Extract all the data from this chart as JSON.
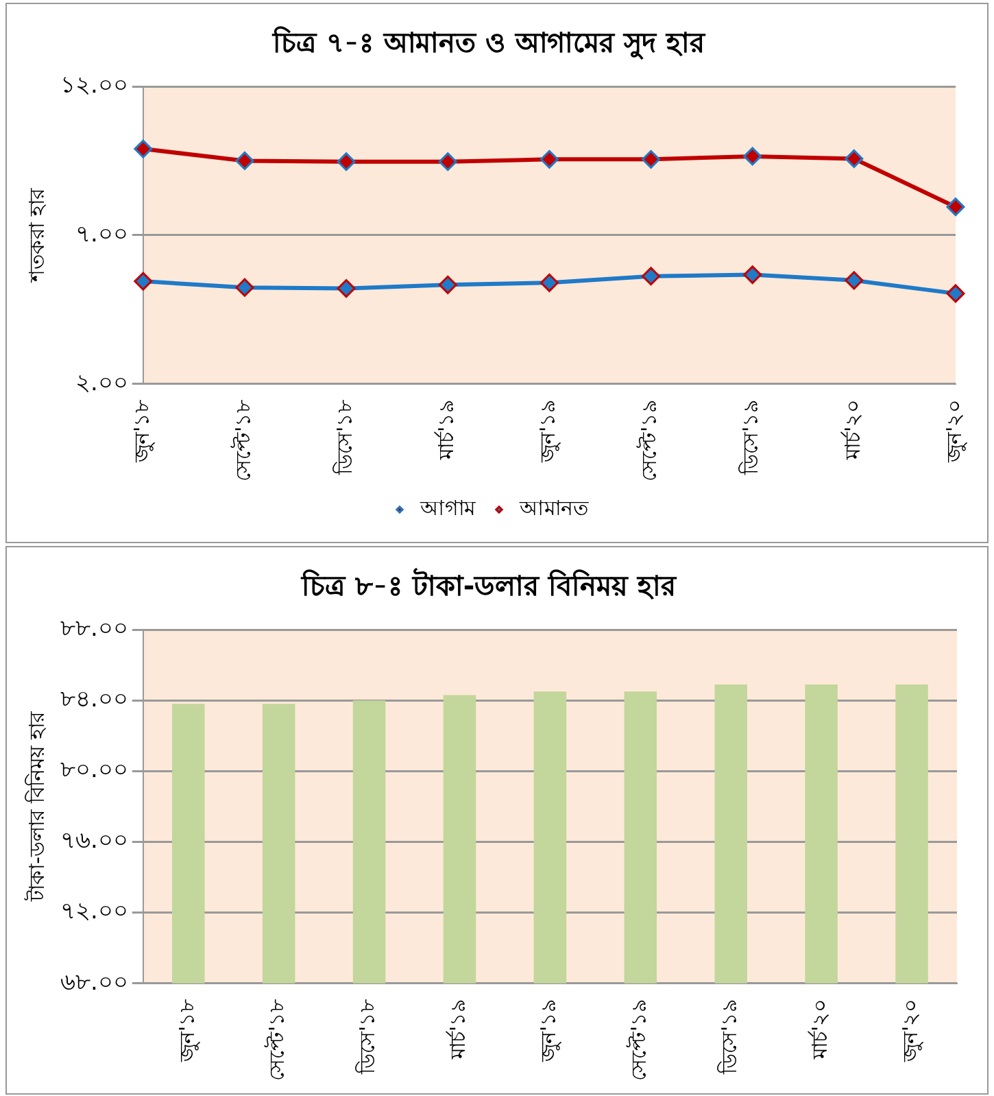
{
  "chart_data": [
    {
      "type": "line",
      "title": "চিত্র ৭-ঃ আমানত ও আগামের সুদ হার",
      "ylabel": "শতকরা হার",
      "categories": [
        "জুন'১৮",
        "সেপ্টে'১৮",
        "ডিসে'১৮",
        "মার্চ'১৯",
        "জুন'১৯",
        "সেপ্টে'১৯",
        "ডিসে'১৯",
        "মার্চ'২০",
        "জুন'২০"
      ],
      "series": [
        {
          "name": "আগাম",
          "color": "#c00000",
          "values": [
            9.9,
            9.5,
            9.47,
            9.47,
            9.55,
            9.55,
            9.65,
            9.57,
            7.95
          ]
        },
        {
          "name": "আমানত",
          "color": "#1f7ac8",
          "values": [
            5.45,
            5.24,
            5.21,
            5.33,
            5.4,
            5.62,
            5.67,
            5.48,
            5.04
          ]
        }
      ],
      "ylim": [
        2,
        12
      ],
      "yticks": [
        {
          "value": 2,
          "label": "২.০০"
        },
        {
          "value": 7,
          "label": "৭.০০"
        },
        {
          "value": 12,
          "label": "১২.০০"
        }
      ],
      "grid": "y",
      "legend": "bottom",
      "marker": "diamond"
    },
    {
      "type": "bar",
      "title": "চিত্র ৮-ঃ টাকা-ডলার বিনিময় হার",
      "ylabel": "টাকা-ডলার বিনিময় হার",
      "categories": [
        "জুন'১৮",
        "সেপ্টে'১৮",
        "ডিসে'১৮",
        "মার্চ'১৯",
        "জুন'১৯",
        "সেপ্টে'১৯",
        "ডিসে'১৯",
        "মার্চ'২০",
        "জুন'২০"
      ],
      "values": [
        83.8,
        83.8,
        84.0,
        84.3,
        84.5,
        84.5,
        84.9,
        84.9,
        84.9
      ],
      "color": "#c3d69b",
      "ylim": [
        68,
        88
      ],
      "yticks": [
        {
          "value": 68,
          "label": "৬৮.০০"
        },
        {
          "value": 72,
          "label": "৭২.০০"
        },
        {
          "value": 76,
          "label": "৭৬.০০"
        },
        {
          "value": 80,
          "label": "৮০.০০"
        },
        {
          "value": 84,
          "label": "৮৪.০০"
        },
        {
          "value": 88,
          "label": "৮৮.০০"
        }
      ],
      "grid": "y",
      "legend": false
    }
  ]
}
